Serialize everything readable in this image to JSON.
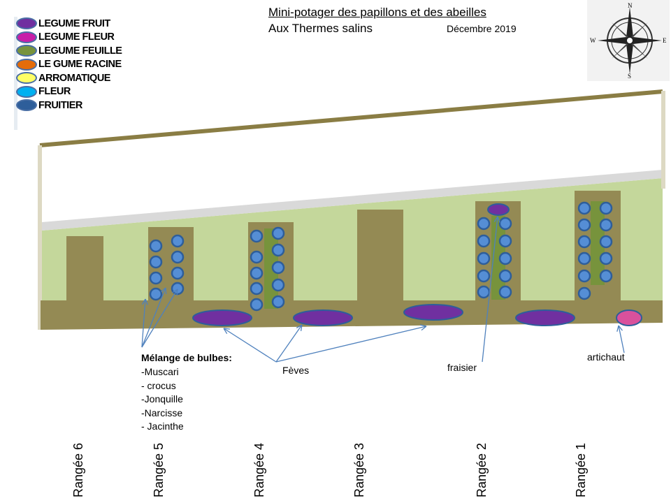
{
  "title": "Mini-potager des papillons et des abeilles",
  "subtitle": "Aux Thermes salins",
  "date": "Décembre 2019",
  "legend": [
    {
      "label": "LEGUME FRUIT",
      "color": "#7030a0"
    },
    {
      "label": "LEGUME FLEUR",
      "color": "#c71fa8"
    },
    {
      "label": "LEGUME FEUILLE",
      "color": "#77933c"
    },
    {
      "label": "LE GUME RACINE",
      "color": "#e46c0a"
    },
    {
      "label": "ARROMATIQUE",
      "color": "#ffff66"
    },
    {
      "label": "FLEUR",
      "color": "#00b0f0"
    },
    {
      "label": "FRUITIER",
      "color": "#2e5e9a"
    }
  ],
  "compass": {
    "n": "N",
    "s": "S",
    "e": "E",
    "w": "W"
  },
  "annotations": {
    "bulbs_title": "Mélange de bulbes:",
    "bulbs": [
      "-Muscari",
      "- crocus",
      "-Jonquille",
      "-Narcisse",
      "- Jacinthe"
    ],
    "feves": "Fèves",
    "fraisier": "fraisier",
    "artichaut": "artichaut"
  },
  "rows": [
    "Rangée 6",
    "Rangée 5",
    "Rangée 4",
    "Rangée 3",
    "Rangée 2",
    "Rangée 1"
  ],
  "colors": {
    "soil": "#948a54",
    "grass": "#c4d79b",
    "plant": "#558ed5",
    "plant_border": "#2e5e9a",
    "feve": "#7030a0",
    "artichaut": "#d9519c"
  }
}
